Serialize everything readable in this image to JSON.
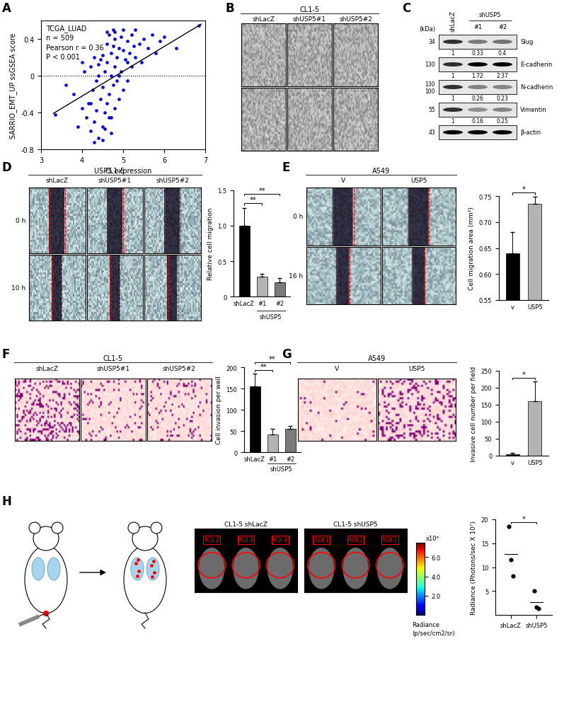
{
  "panel_letters": [
    "A",
    "B",
    "C",
    "D",
    "E",
    "F",
    "G",
    "H"
  ],
  "chart_data": [
    {
      "type": "scatter",
      "annotations": [
        "TCGA_LUAD",
        "n = 509",
        "Pearson r = 0.36",
        "P < 0.001"
      ],
      "x_label": "USP5 expression",
      "y_label": "SARRIO_EMT_UP ssGSEA score",
      "x": [
        3.35,
        3.6,
        3.8,
        3.9,
        4.0,
        4.05,
        4.1,
        4.15,
        4.2,
        4.2,
        4.25,
        4.3,
        4.3,
        4.35,
        4.35,
        4.4,
        4.4,
        4.45,
        4.45,
        4.5,
        4.5,
        4.5,
        4.55,
        4.55,
        4.6,
        4.6,
        4.6,
        4.65,
        4.65,
        4.7,
        4.7,
        4.7,
        4.75,
        4.75,
        4.8,
        4.8,
        4.8,
        4.85,
        4.85,
        4.9,
        4.9,
        4.95,
        4.95,
        5.0,
        5.0,
        5.05,
        5.1,
        5.1,
        5.15,
        5.2,
        5.2,
        5.25,
        5.3,
        5.3,
        5.4,
        5.45,
        5.5,
        5.6,
        5.7,
        5.8,
        5.9,
        6.0,
        6.3,
        6.85,
        4.0,
        4.3,
        4.5,
        4.6,
        4.8,
        5.0,
        4.2,
        4.4,
        4.7,
        4.9,
        5.1,
        4.55,
        4.65,
        4.75
      ],
      "values": [
        -0.42,
        -0.1,
        -0.2,
        -0.55,
        -0.35,
        0.05,
        -0.45,
        -0.3,
        -0.6,
        0.1,
        -0.15,
        -0.5,
        0.2,
        -0.05,
        -0.38,
        -0.68,
        0.12,
        -0.25,
        0.18,
        -0.55,
        -0.12,
        0.22,
        -0.4,
        0.05,
        -0.3,
        0.15,
        0.35,
        -0.2,
        0.45,
        -0.62,
        0.0,
        0.25,
        -0.1,
        0.32,
        -0.35,
        0.1,
        0.4,
        -0.05,
        0.2,
        -0.25,
        0.3,
        0.05,
        0.42,
        -0.15,
        0.28,
        0.18,
        -0.05,
        0.38,
        0.25,
        0.1,
        0.45,
        0.32,
        0.2,
        0.5,
        0.35,
        0.15,
        0.4,
        0.3,
        0.45,
        0.25,
        0.38,
        0.42,
        0.3,
        0.55,
        0.15,
        -0.72,
        -0.7,
        0.48,
        0.48,
        0.5,
        -0.3,
        0.0,
        -0.45,
        0.0,
        0.15,
        -0.58,
        -0.45,
        0.5
      ],
      "color": "#0000ff",
      "trend_line": {
        "x": [
          3.3,
          6.9
        ],
        "values": [
          -0.41,
          0.56
        ]
      },
      "reference_line": 0,
      "xlim": [
        3,
        7
      ],
      "xticks": [
        3,
        4,
        5,
        6,
        7
      ],
      "ylim": [
        -0.8,
        0.6
      ],
      "yticks": [
        -0.8,
        -0.4,
        0,
        0.4
      ]
    },
    {
      "type": "bar",
      "categories": [
        "shLacZ",
        "#1",
        "#2"
      ],
      "group": {
        "label": "shUSP5",
        "members": [
          "#1",
          "#2"
        ]
      },
      "values": [
        1.0,
        0.28,
        0.2
      ],
      "errors": [
        0.25,
        0.04,
        0.06
      ],
      "colors": [
        "#000000",
        "#b3b3b3",
        "#7a7a7a"
      ],
      "y_label": "Relative cell migration",
      "ylim": [
        0,
        1.5
      ],
      "yticks": [
        0,
        0.5,
        {
          "value": 1,
          "label": "1.0"
        },
        1.5
      ],
      "comparisons": [
        {
          "pair": [
            "shLacZ",
            "#1"
          ],
          "label": "**"
        },
        {
          "pair": [
            "shLacZ",
            "#2"
          ],
          "label": "**"
        }
      ]
    },
    {
      "type": "bar",
      "categories": [
        "v",
        "USP5"
      ],
      "values": [
        0.64,
        0.735
      ],
      "errors": [
        0.04,
        0.013
      ],
      "colors": [
        "#000000",
        "#b3b3b3"
      ],
      "y_label": "Cell migration area (mm²)",
      "ylim": [
        0.55,
        0.75
      ],
      "yticks": [
        0.55,
        {
          "value": 0.6,
          "label": "0.60"
        },
        0.65,
        {
          "value": 0.7,
          "label": "0.70"
        },
        0.75
      ],
      "comparisons": [
        {
          "pair": [
            "v",
            "USP5"
          ],
          "label": "*"
        }
      ]
    },
    {
      "type": "bar",
      "categories": [
        "shLacZ",
        "#1",
        "#2"
      ],
      "group": {
        "label": "shUSP5",
        "members": [
          "#1",
          "#2"
        ]
      },
      "values": [
        155,
        42,
        55
      ],
      "errors": [
        30,
        13,
        7
      ],
      "colors": [
        "#000000",
        "#b3b3b3",
        "#7a7a7a"
      ],
      "y_label": "Cell invasion per well",
      "ylim": [
        0,
        200
      ],
      "yticks": [
        0,
        50,
        100,
        150,
        200
      ],
      "comparisons": [
        {
          "pair": [
            "shLacZ",
            "#1"
          ],
          "label": "**"
        },
        {
          "pair": [
            "shLacZ",
            "#2"
          ],
          "label": "**"
        }
      ]
    },
    {
      "type": "bar",
      "categories": [
        "v",
        "USP5"
      ],
      "values": [
        5,
        160
      ],
      "errors": [
        4,
        58
      ],
      "colors": [
        "#000000",
        "#b3b3b3"
      ],
      "y_label": "Invasive cell number per field",
      "ylim": [
        0,
        250
      ],
      "yticks": [
        0,
        50,
        100,
        150,
        200,
        250
      ],
      "comparisons": [
        {
          "pair": [
            "v",
            "USP5"
          ],
          "label": "*"
        }
      ]
    },
    {
      "type": "dot",
      "categories": [
        "shLacZ",
        "shUSP5"
      ],
      "values": [
        [
          18.5,
          11.5,
          8.2
        ],
        [
          5.0,
          1.6,
          1.3
        ]
      ],
      "color": "#000000",
      "y_label": "Radiance (Photons/sec X 10⁷)",
      "ylim": [
        0,
        20
      ],
      "yticks": [
        5,
        10,
        15,
        20
      ],
      "comparisons": [
        {
          "pair": [
            "shLacZ",
            "shUSP5"
          ],
          "label": "*"
        }
      ]
    }
  ],
  "images": {
    "B": {
      "title": "CL1-5",
      "columns": [
        "shLacZ",
        "shUSP5#1",
        "shUSP5#2"
      ]
    },
    "C": {
      "lanes": [
        "shLacZ",
        "#1",
        "#2"
      ],
      "lane_group": {
        "label": "shUSP5",
        "members": [
          "#1",
          "#2"
        ]
      },
      "unit": "(kDa)",
      "rows": [
        {
          "name": "Slug",
          "markers": [
            34
          ],
          "quant": [
            1,
            0.33,
            0.4
          ]
        },
        {
          "name": "E-cadherin",
          "markers": [
            130
          ],
          "quant": [
            1,
            1.72,
            2.37
          ]
        },
        {
          "name": "N-cadherin",
          "markers": [
            130,
            100
          ],
          "quant": [
            1,
            0.26,
            0.23
          ]
        },
        {
          "name": "Vimentin",
          "markers": [
            55
          ],
          "quant": [
            1,
            0.16,
            0.25
          ]
        },
        {
          "name": "β-actin",
          "markers": [
            43
          ]
        }
      ]
    },
    "D": {
      "title": "CL1-5",
      "columns": [
        "shLacZ",
        "shUSP5#1",
        "shUSP5#2"
      ],
      "rows": [
        "0 h",
        "10 h"
      ]
    },
    "E": {
      "title": "A549",
      "columns": [
        "V",
        "USP5"
      ],
      "rows": [
        "0 h",
        "16 h"
      ]
    },
    "F": {
      "title": "CL1-5",
      "columns": [
        "shLacZ",
        "shUSP5#1",
        "shUSP5#2"
      ]
    },
    "G": {
      "title": "A549",
      "columns": [
        "V",
        "USP5"
      ]
    },
    "H": {
      "photos": [
        {
          "title": "CL1-5 shLacZ",
          "rois": [
            "ROI 2",
            "ROI 3",
            "ROI 4"
          ]
        },
        {
          "title": "CL1-5 shUSP5",
          "rois": [
            "ROI 1",
            "ROI 2",
            "ROI 3"
          ]
        }
      ],
      "colorbar": {
        "range": [
          0,
          7.5
        ],
        "ticks": [
          {
            "value": 2,
            "label": "2.0"
          },
          {
            "value": 4,
            "label": "4.0"
          },
          {
            "value": 6,
            "label": "6.0"
          }
        ],
        "multiplier": "x10⁶",
        "label": "Radiance",
        "unit": "(p/sec/cm2/sr)"
      }
    }
  }
}
